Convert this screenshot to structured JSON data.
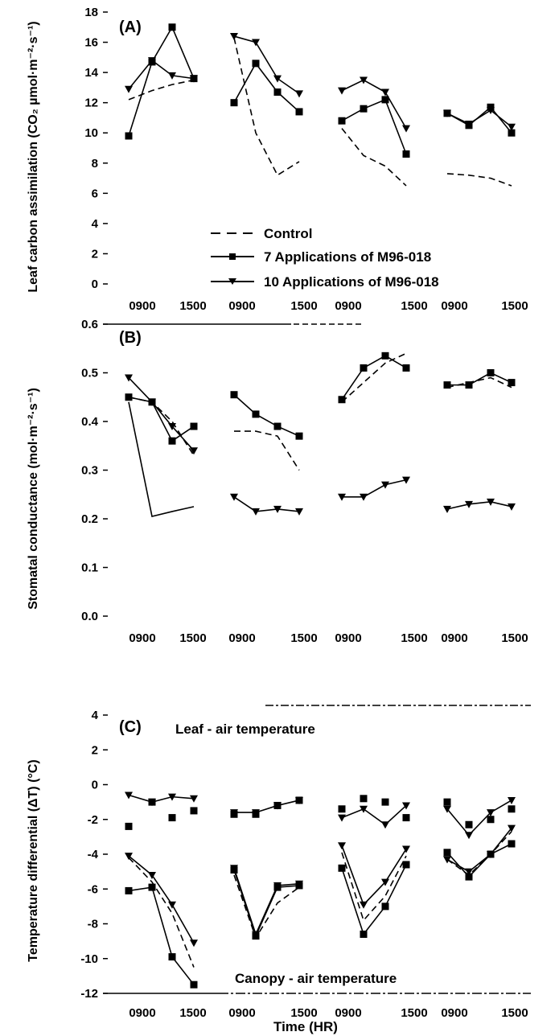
{
  "chart_data": [
    {
      "type": "line",
      "panel_label": "(A)",
      "ylabel": "Leaf carbon assimilation (CO₂ µmol·m⁻²·s⁻¹)",
      "ylim": [
        0,
        18
      ],
      "yticks": [
        "0",
        "2",
        "4",
        "6",
        "8",
        "10",
        "12",
        "14",
        "16",
        "18"
      ],
      "x_tick_labels": [
        "0900",
        "1500",
        "0900",
        "1500",
        "0900",
        "1500",
        "0900",
        "1500"
      ],
      "legend_position": "bottom-right",
      "series": [
        {
          "name": "Control",
          "style": "dashed",
          "marker": "none",
          "groups": [
            [
              [
                0,
                12.2
              ],
              [
                1,
                12.8
              ],
              [
                2,
                13.2
              ],
              [
                3,
                13.5
              ]
            ],
            [
              [
                0,
                16.3
              ],
              [
                1,
                10.0
              ],
              [
                2,
                7.2
              ],
              [
                3,
                8.1
              ]
            ],
            [
              [
                0,
                10.3
              ],
              [
                1,
                8.5
              ],
              [
                2,
                7.8
              ],
              [
                3,
                6.5
              ]
            ],
            [
              [
                0,
                7.3
              ],
              [
                1,
                7.2
              ],
              [
                2,
                7.0
              ],
              [
                3,
                6.5
              ]
            ]
          ]
        },
        {
          "name": "7 Applications of M96-018",
          "style": "solid",
          "marker": "square",
          "groups": [
            [
              [
                0,
                9.8
              ],
              [
                1,
                14.7
              ],
              [
                2,
                17.0
              ],
              [
                3,
                13.6
              ]
            ],
            [
              [
                0,
                12.0
              ],
              [
                1,
                14.6
              ],
              [
                2,
                12.7
              ],
              [
                3,
                11.4
              ]
            ],
            [
              [
                0,
                10.8
              ],
              [
                1,
                11.6
              ],
              [
                2,
                12.2
              ],
              [
                3,
                8.6
              ]
            ],
            [
              [
                0,
                11.3
              ],
              [
                1,
                10.5
              ],
              [
                2,
                11.7
              ],
              [
                3,
                10.0
              ]
            ]
          ]
        },
        {
          "name": "10 Applications of M96-018",
          "style": "solid",
          "marker": "triangle",
          "groups": [
            [
              [
                0,
                12.9
              ],
              [
                1,
                14.8
              ],
              [
                2,
                13.8
              ],
              [
                3,
                13.6
              ]
            ],
            [
              [
                0,
                16.4
              ],
              [
                1,
                16.0
              ],
              [
                2,
                13.6
              ],
              [
                3,
                12.6
              ]
            ],
            [
              [
                0,
                12.8
              ],
              [
                1,
                13.5
              ],
              [
                2,
                12.7
              ],
              [
                3,
                10.3
              ]
            ],
            [
              [
                0,
                11.3
              ],
              [
                1,
                10.6
              ],
              [
                2,
                11.5
              ],
              [
                3,
                10.4
              ]
            ]
          ]
        }
      ]
    },
    {
      "type": "line",
      "panel_label": "(B)",
      "ylabel": "Stomatal conductance (mol·m⁻²·s⁻¹)",
      "ylim": [
        0,
        0.6
      ],
      "yticks": [
        "0.0",
        "0.1",
        "0.2",
        "0.3",
        "0.4",
        "0.5",
        "0.6"
      ],
      "x_tick_labels": [
        "0900",
        "1500",
        "0900",
        "1500",
        "0900",
        "1500",
        "0900",
        "1500"
      ],
      "series": [
        {
          "name": "Control",
          "style": "dashed",
          "marker": "none",
          "groups": [
            [
              [
                0,
                0.45
              ],
              [
                1,
                0.44
              ],
              [
                2,
                0.4
              ],
              [
                3,
                0.33
              ]
            ],
            [
              [
                0,
                0.38
              ],
              [
                1,
                0.38
              ],
              [
                2,
                0.37
              ],
              [
                3,
                0.3
              ]
            ],
            [
              [
                0,
                0.44
              ],
              [
                1,
                0.48
              ],
              [
                2,
                0.52
              ],
              [
                3,
                0.54
              ]
            ],
            [
              [
                0,
                0.47
              ],
              [
                1,
                0.48
              ],
              [
                2,
                0.49
              ],
              [
                3,
                0.47
              ]
            ]
          ]
        },
        {
          "name": "7 Applications of M96-018",
          "style": "solid",
          "marker": "square",
          "groups": [
            [
              [
                0,
                0.45
              ],
              [
                1,
                0.44
              ],
              [
                2,
                0.36
              ],
              [
                3,
                0.39
              ]
            ],
            [
              [
                0,
                0.455
              ],
              [
                1,
                0.415
              ],
              [
                2,
                0.39
              ],
              [
                3,
                0.37
              ]
            ],
            [
              [
                0,
                0.445
              ],
              [
                1,
                0.51
              ],
              [
                2,
                0.535
              ],
              [
                3,
                0.51
              ]
            ],
            [
              [
                0,
                0.475
              ],
              [
                1,
                0.475
              ],
              [
                2,
                0.5
              ],
              [
                3,
                0.48
              ]
            ]
          ]
        },
        {
          "name": "10 Applications of M96-018",
          "style": "solid",
          "marker": "triangle",
          "groups": [
            [
              [
                0,
                0.49
              ],
              [
                1,
                0.44
              ],
              [
                2,
                0.39
              ],
              [
                3,
                0.34
              ]
            ],
            [
              [
                0,
                0.245
              ],
              [
                1,
                0.215
              ],
              [
                2,
                0.22
              ],
              [
                3,
                0.215
              ]
            ],
            [
              [
                0,
                0.245
              ],
              [
                1,
                0.245
              ],
              [
                2,
                0.27
              ],
              [
                3,
                0.28
              ]
            ],
            [
              [
                0,
                0.22
              ],
              [
                1,
                0.23
              ],
              [
                2,
                0.235
              ],
              [
                3,
                0.225
              ]
            ]
          ]
        },
        {
          "name": "",
          "style": "solid",
          "marker": "none",
          "groups": [
            [
              [
                0,
                0.44
              ],
              [
                1,
                0.205
              ],
              [
                2,
                0.215
              ],
              [
                3,
                0.225
              ]
            ]
          ]
        }
      ]
    },
    {
      "type": "line",
      "panel_label": "(C)",
      "ylabel": "Temperature differential (ΔT) (°C)",
      "ylim": [
        -12,
        4
      ],
      "yticks": [
        "-12",
        "-10",
        "-8",
        "-6",
        "-4",
        "-2",
        "0",
        "2",
        "4"
      ],
      "x_tick_labels": [
        "0900",
        "1500",
        "0900",
        "1500",
        "0900",
        "1500",
        "0900",
        "1500"
      ],
      "xlabel": "Time (HR)",
      "annotations": [
        "Leaf - air temperature",
        "Canopy - air temperature"
      ],
      "series": [
        {
          "name": "Leaf - air, 7 Applications",
          "style": "none",
          "marker": "square",
          "groups": [
            [
              [
                0,
                -2.4
              ],
              [
                1,
                -1.0
              ],
              [
                2,
                -1.9
              ],
              [
                3,
                -1.5
              ]
            ],
            [
              [
                0,
                -1.7
              ],
              [
                1,
                -1.7
              ],
              [
                2,
                -1.2
              ],
              [
                3,
                -0.9
              ]
            ],
            [
              [
                0,
                -1.4
              ],
              [
                1,
                -0.8
              ],
              [
                2,
                -1.0
              ],
              [
                3,
                -1.9
              ]
            ],
            [
              [
                0,
                -1.0
              ],
              [
                1,
                -2.3
              ],
              [
                2,
                -2.0
              ],
              [
                3,
                -1.4
              ]
            ]
          ]
        },
        {
          "name": "Leaf - air, 10 Applications",
          "style": "solid",
          "marker": "triangle",
          "groups": [
            [
              [
                0,
                -0.6
              ],
              [
                1,
                -1.0
              ],
              [
                2,
                -0.7
              ],
              [
                3,
                -0.8
              ]
            ],
            [
              [
                0,
                -1.6
              ],
              [
                1,
                -1.6
              ],
              [
                2,
                -1.2
              ],
              [
                3,
                -0.9
              ]
            ],
            [
              [
                0,
                -1.9
              ],
              [
                1,
                -1.4
              ],
              [
                2,
                -2.3
              ],
              [
                3,
                -1.2
              ]
            ],
            [
              [
                0,
                -1.4
              ],
              [
                1,
                -2.9
              ],
              [
                2,
                -1.6
              ],
              [
                3,
                -0.9
              ]
            ]
          ]
        },
        {
          "name": "Canopy - air, Control",
          "style": "dashed",
          "marker": "none",
          "groups": [
            [
              [
                0,
                -4.2
              ],
              [
                1,
                -5.6
              ],
              [
                2,
                -7.4
              ],
              [
                3,
                -10.5
              ]
            ],
            [
              [
                0,
                -5.2
              ],
              [
                1,
                -8.8
              ],
              [
                2,
                -6.8
              ],
              [
                3,
                -5.9
              ]
            ],
            [
              [
                0,
                -3.9
              ],
              [
                1,
                -7.8
              ],
              [
                2,
                -6.4
              ],
              [
                3,
                -4.1
              ]
            ],
            [
              [
                0,
                -4.3
              ],
              [
                1,
                -5.2
              ],
              [
                2,
                -4.0
              ],
              [
                3,
                -2.7
              ]
            ]
          ]
        },
        {
          "name": "Canopy - air, 7 Applications",
          "style": "solid",
          "marker": "square",
          "groups": [
            [
              [
                0,
                -6.1
              ],
              [
                1,
                -5.9
              ],
              [
                2,
                -9.9
              ],
              [
                3,
                -11.5
              ]
            ],
            [
              [
                0,
                -4.9
              ],
              [
                1,
                -8.7
              ],
              [
                2,
                -5.9
              ],
              [
                3,
                -5.8
              ]
            ],
            [
              [
                0,
                -4.8
              ],
              [
                1,
                -8.6
              ],
              [
                2,
                -7.0
              ],
              [
                3,
                -4.6
              ]
            ],
            [
              [
                0,
                -3.9
              ],
              [
                1,
                -5.3
              ],
              [
                2,
                -4.0
              ],
              [
                3,
                -3.4
              ]
            ]
          ]
        },
        {
          "name": "Canopy - air, 10 Applications",
          "style": "solid",
          "marker": "triangle",
          "groups": [
            [
              [
                0,
                -4.1
              ],
              [
                1,
                -5.2
              ],
              [
                2,
                -6.9
              ],
              [
                3,
                -9.1
              ]
            ],
            [
              [
                0,
                -4.8
              ],
              [
                1,
                -8.6
              ],
              [
                2,
                -5.8
              ],
              [
                3,
                -5.7
              ]
            ],
            [
              [
                0,
                -3.5
              ],
              [
                1,
                -6.9
              ],
              [
                2,
                -5.6
              ],
              [
                3,
                -3.7
              ]
            ],
            [
              [
                0,
                -4.3
              ],
              [
                1,
                -5.0
              ],
              [
                2,
                -4.0
              ],
              [
                3,
                -2.5
              ]
            ]
          ]
        }
      ]
    }
  ]
}
